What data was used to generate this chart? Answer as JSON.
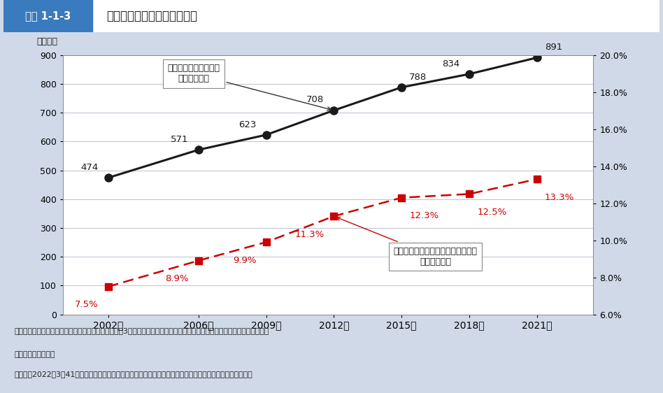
{
  "title_label": "医療・福祉の就業者数の推移",
  "box_label": "図表 1-1-3",
  "years": [
    2002,
    2006,
    2009,
    2012,
    2015,
    2018,
    2021
  ],
  "left_values": [
    474,
    571,
    623,
    708,
    788,
    834,
    891
  ],
  "right_values": [
    7.5,
    8.9,
    9.9,
    11.3,
    12.3,
    12.5,
    13.3
  ],
  "left_unit": "（万人）",
  "ylim_left": [
    0,
    900
  ],
  "ylim_right": [
    6.0,
    20.0
  ],
  "yticks_left": [
    0,
    100,
    200,
    300,
    400,
    500,
    600,
    700,
    800,
    900
  ],
  "yticks_right": [
    6.0,
    8.0,
    10.0,
    12.0,
    14.0,
    16.0,
    18.0,
    20.0
  ],
  "line1_color": "#1a1a1a",
  "line2_color": "#cc0000",
  "line1_annotation": "医療・福祉の就業者数\n（左目盛り）",
  "line2_annotation": "医療・福祉の全就業者に占める割合\n（右目盛り）",
  "bg_color": "#cfd9e8",
  "plot_bg_color": "#ffffff",
  "header_box1_color": "#3a7abf",
  "header_box2_color": "#ffffff",
  "footer_text1": "資料：総務省統計局「労働力調査（基本集計）（令和3年）平均結果」より厚生労働省政策統括官付政策立案・評価担当参事",
  "footer_text2": "官室において作成。",
  "footer_text3": "（注）　2022年3月41日に公表されたベンチマーク人口の新基準に基づいて顐及集計した数値を用いている。"
}
